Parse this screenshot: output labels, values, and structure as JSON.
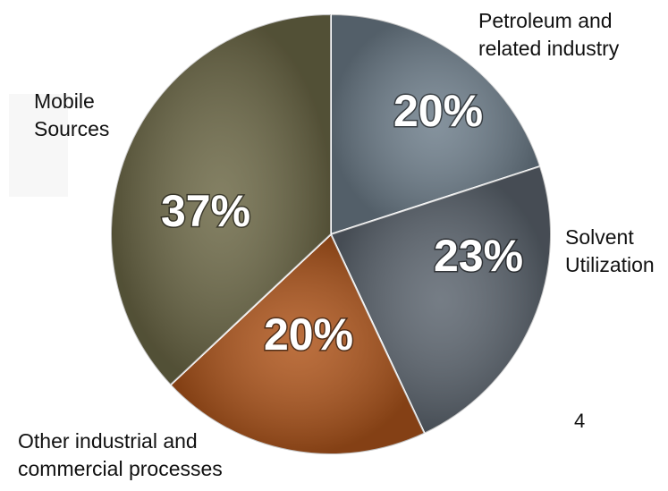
{
  "chart_data": {
    "type": "pie",
    "categories": [
      "Petroleum and related industry",
      "Solvent Utilization",
      "Other industrial and commercial processes",
      "Mobile Sources"
    ],
    "values": [
      20,
      23,
      20,
      37
    ],
    "value_labels": [
      "20%",
      "23%",
      "20%",
      "37%"
    ],
    "colors": [
      "#6f7f8c",
      "#5d6670",
      "#b0561c",
      "#6e6a48"
    ]
  },
  "page_number": "4"
}
